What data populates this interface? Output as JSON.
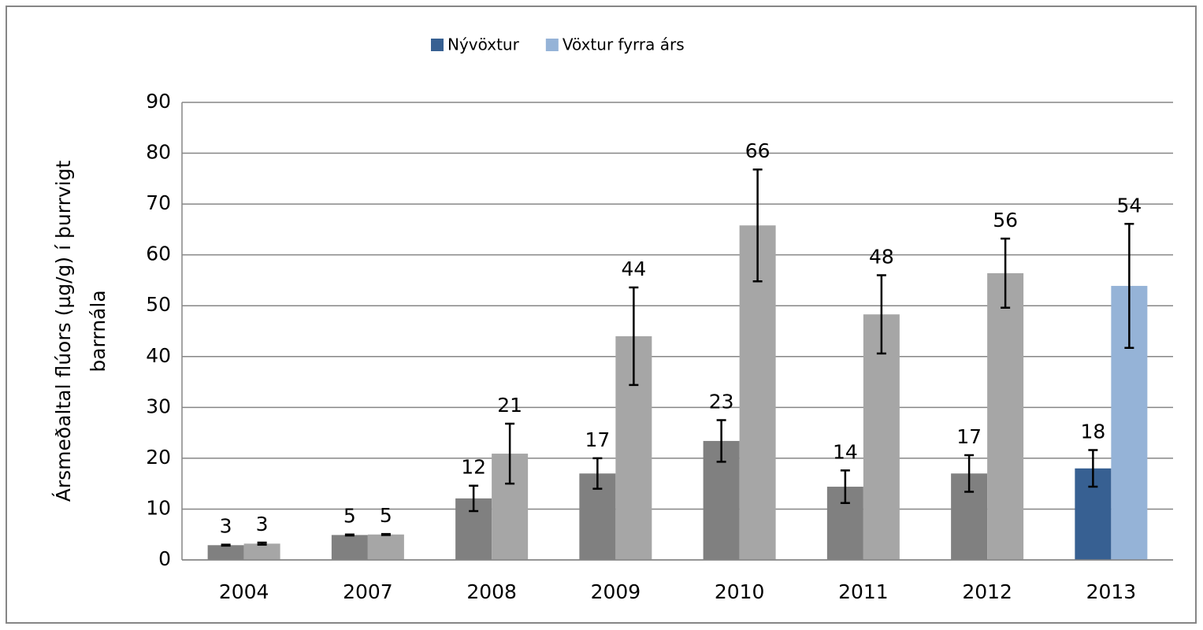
{
  "chart_data": {
    "type": "bar",
    "ylabel": [
      "Ársmeðaltal flúors (µg/g) í þurrvigt",
      "barrnála"
    ],
    "categories": [
      "2004",
      "2007",
      "2008",
      "2009",
      "2010",
      "2011",
      "2012",
      "2013"
    ],
    "bar_colors": [
      [
        "#808080",
        "#a6a6a6"
      ],
      [
        "#808080",
        "#a6a6a6"
      ],
      [
        "#808080",
        "#a6a6a6"
      ],
      [
        "#808080",
        "#a6a6a6"
      ],
      [
        "#808080",
        "#a6a6a6"
      ],
      [
        "#808080",
        "#a6a6a6"
      ],
      [
        "#808080",
        "#a6a6a6"
      ],
      [
        "#376092",
        "#95b3d7"
      ]
    ],
    "series": [
      {
        "name": "Nývöxtur",
        "color": "#376092",
        "values": [
          2.9,
          4.9,
          12.1,
          17.0,
          23.4,
          14.4,
          17.0,
          18.0
        ],
        "errors": [
          0.1,
          0.1,
          2.5,
          3.0,
          4.1,
          3.2,
          3.6,
          3.6
        ],
        "value_labels": [
          "3",
          "5",
          "12",
          "17",
          "23",
          "14",
          "17",
          "18"
        ]
      },
      {
        "name": "Vöxtur fyrra árs",
        "color": "#95b3d7",
        "values": [
          3.2,
          5.0,
          20.9,
          44.0,
          65.8,
          48.3,
          56.4,
          53.9
        ],
        "errors": [
          0.2,
          0.1,
          5.9,
          9.6,
          11.0,
          7.7,
          6.8,
          12.2
        ],
        "value_labels": [
          "3",
          "5",
          "21",
          "44",
          "66",
          "48",
          "56",
          "54"
        ]
      }
    ],
    "ylim": [
      0,
      90
    ],
    "yticks": [
      0,
      10,
      20,
      30,
      40,
      50,
      60,
      70,
      80,
      90
    ],
    "grid": true,
    "legend": "top"
  }
}
